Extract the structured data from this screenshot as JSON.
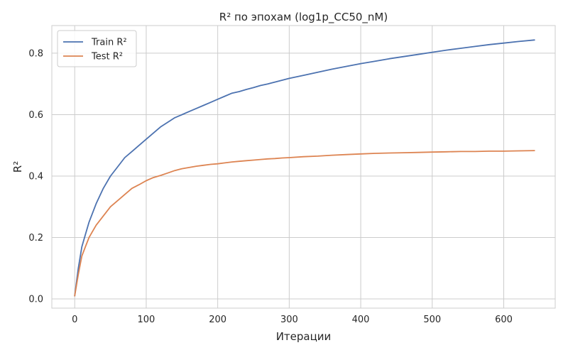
{
  "chart_data": {
    "type": "line",
    "title": "R² по эпохам (log1p_CC50_nM)",
    "xlabel": "Итерации",
    "ylabel": "R²",
    "xlim": [
      -32,
      672
    ],
    "ylim": [
      -0.03,
      0.89
    ],
    "xticks": [
      0,
      100,
      200,
      300,
      400,
      500,
      600
    ],
    "yticks": [
      0.0,
      0.2,
      0.4,
      0.6,
      0.8
    ],
    "xtick_labels": [
      "0",
      "100",
      "200",
      "300",
      "400",
      "500",
      "600"
    ],
    "ytick_labels": [
      "0.0",
      "0.2",
      "0.4",
      "0.6",
      "0.8"
    ],
    "grid": true,
    "legend_position": "top-left",
    "x": [
      0,
      5,
      10,
      15,
      20,
      30,
      40,
      50,
      60,
      70,
      80,
      90,
      100,
      110,
      120,
      130,
      140,
      150,
      160,
      170,
      180,
      190,
      200,
      210,
      220,
      230,
      240,
      250,
      260,
      270,
      280,
      290,
      300,
      320,
      340,
      360,
      380,
      400,
      420,
      440,
      460,
      480,
      500,
      520,
      540,
      560,
      580,
      600,
      620,
      643
    ],
    "series": [
      {
        "name": "Train R²",
        "color": "#4c72b0",
        "values": [
          0.01,
          0.1,
          0.17,
          0.21,
          0.25,
          0.31,
          0.36,
          0.4,
          0.43,
          0.46,
          0.48,
          0.5,
          0.52,
          0.54,
          0.56,
          0.575,
          0.59,
          0.6,
          0.61,
          0.62,
          0.63,
          0.64,
          0.65,
          0.66,
          0.67,
          0.675,
          0.682,
          0.688,
          0.695,
          0.7,
          0.706,
          0.712,
          0.718,
          0.728,
          0.738,
          0.748,
          0.757,
          0.766,
          0.774,
          0.782,
          0.789,
          0.796,
          0.803,
          0.81,
          0.816,
          0.822,
          0.828,
          0.833,
          0.838,
          0.843
        ]
      },
      {
        "name": "Test R²",
        "color": "#dd8452",
        "values": [
          0.01,
          0.08,
          0.14,
          0.17,
          0.2,
          0.24,
          0.27,
          0.3,
          0.32,
          0.34,
          0.36,
          0.372,
          0.385,
          0.395,
          0.402,
          0.41,
          0.418,
          0.424,
          0.428,
          0.432,
          0.435,
          0.438,
          0.44,
          0.443,
          0.446,
          0.448,
          0.45,
          0.452,
          0.454,
          0.456,
          0.457,
          0.459,
          0.46,
          0.463,
          0.465,
          0.468,
          0.47,
          0.472,
          0.474,
          0.475,
          0.476,
          0.477,
          0.478,
          0.479,
          0.48,
          0.48,
          0.481,
          0.481,
          0.482,
          0.483
        ]
      }
    ]
  }
}
